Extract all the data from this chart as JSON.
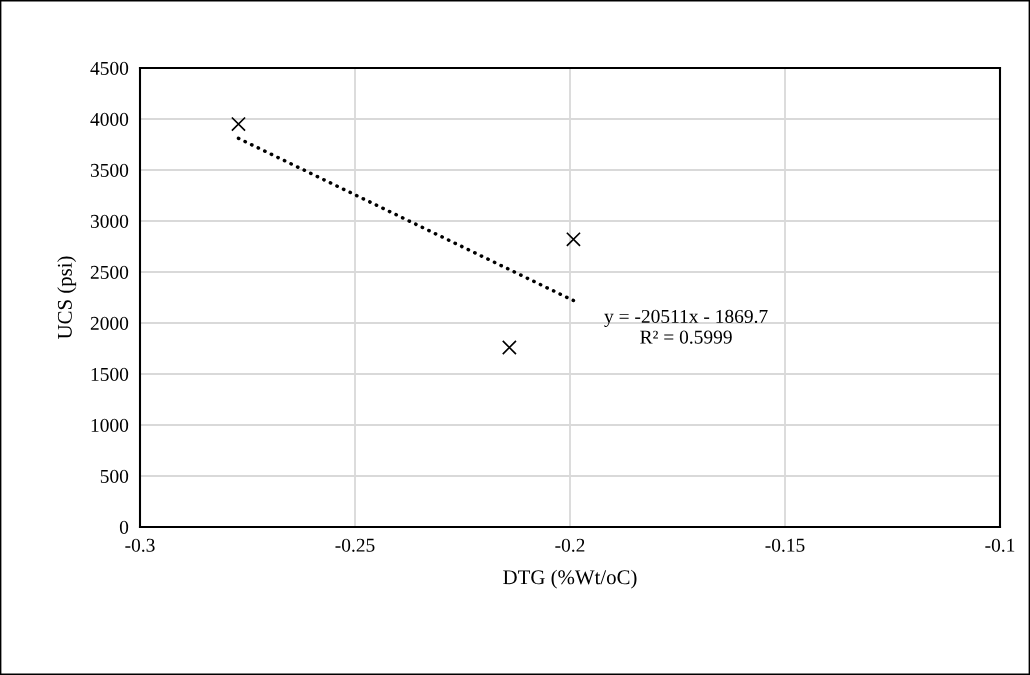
{
  "chart_data": {
    "type": "scatter",
    "xlabel": "DTG (%Wt/oC)",
    "ylabel": "UCS (psi)",
    "series": [
      {
        "color": "#000000",
        "marker": "cross",
        "x": [
          -0.2771,
          -0.1992,
          -0.2141
        ],
        "values": [
          3950,
          2820,
          1760
        ]
      },
      {
        "type": "line",
        "color": "#000000",
        "line_style": "dotted",
        "x": [
          -0.2771,
          -0.1992
        ],
        "values": [
          3810,
          2220
        ]
      }
    ],
    "annotations": [
      "y = -20511x - 1869.7",
      "R² = 0.5999"
    ],
    "xlim": [
      -0.3,
      -0.1
    ],
    "xticks": [
      -0.3,
      -0.25,
      -0.2,
      -0.15,
      -0.1
    ],
    "ylim": [
      0,
      4500
    ],
    "yticks": [
      0,
      500,
      1000,
      1500,
      2000,
      2500,
      3000,
      3500,
      4000,
      4500
    ],
    "grid": true
  }
}
